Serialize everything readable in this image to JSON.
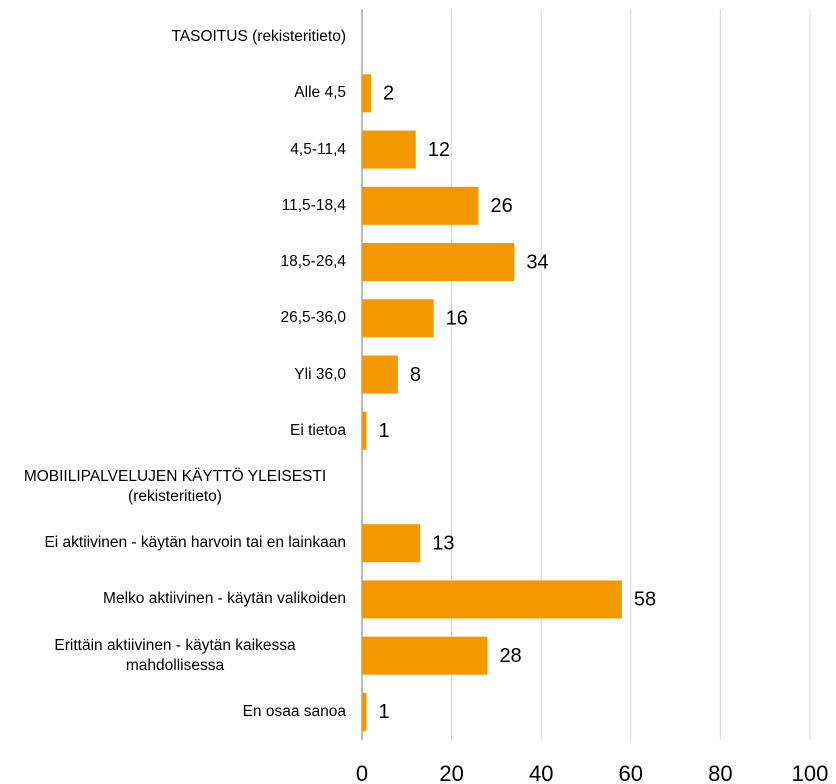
{
  "chart_data": {
    "type": "bar",
    "orientation": "horizontal",
    "categories": [
      "TASOITUS (rekisteritieto)",
      "Alle 4,5",
      "4,5-11,4",
      "11,5-18,4",
      "18,5-26,4",
      "26,5-36,0",
      "Yli 36,0",
      "Ei tietoa",
      "MOBIILIPALVELUJEN KÄYTTÖ YLEISESTI (rekisteritieto)",
      "Ei aktiivinen - käytän harvoin tai en lainkaan",
      "Melko aktiivinen - käytän valikoiden",
      "Erittäin aktiivinen - käytän kaikessa mahdollisessa",
      "En osaa sanoa"
    ],
    "values": [
      null,
      2,
      12,
      26,
      34,
      16,
      8,
      1,
      null,
      13,
      58,
      28,
      1
    ],
    "color": "#f39800",
    "xlim": [
      0,
      100
    ],
    "xticks": [
      0,
      20,
      40,
      60,
      80,
      100
    ],
    "grid": true
  }
}
